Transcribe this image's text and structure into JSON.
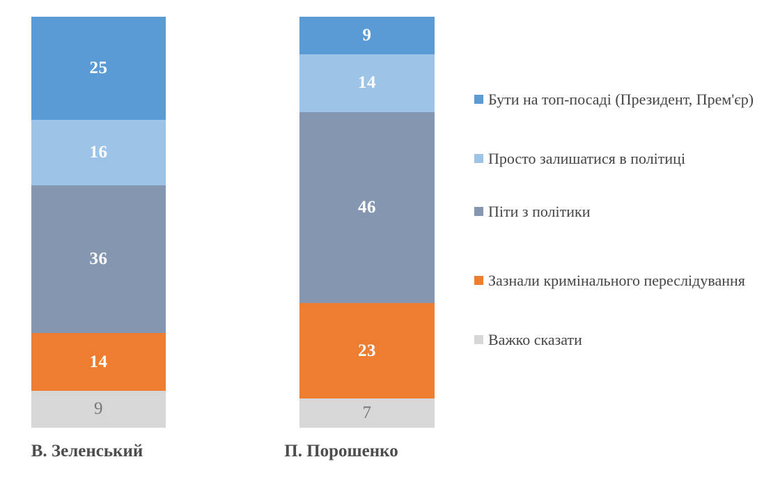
{
  "chart_data": {
    "type": "bar",
    "subtype": "stacked-column-100",
    "title": "",
    "xlabel": "",
    "ylabel": "",
    "grid": false,
    "axes_visible": false,
    "legend_position": "right",
    "categories": [
      "В. Зеленський",
      "П. Порошенко"
    ],
    "series": [
      {
        "name": "Бути на топ-посаді (Президент, Прем'єр)",
        "color": "#5b9bd5",
        "values": [
          25,
          9
        ],
        "label_color": "#ffffff",
        "label_bold": true
      },
      {
        "name": "Просто залишатися в політиці",
        "color": "#9dc3e6",
        "values": [
          16,
          14
        ],
        "label_color": "#ffffff",
        "label_bold": true
      },
      {
        "name": "Піти з політики",
        "color": "#8496b0",
        "values": [
          36,
          46
        ],
        "label_color": "#ffffff",
        "label_bold": true
      },
      {
        "name": "Зазнали кримінального переслідування",
        "color": "#ed7d31",
        "values": [
          14,
          23
        ],
        "label_color": "#ffffff",
        "label_bold": true
      },
      {
        "name": "Важко сказати",
        "color": "#d7d7d7",
        "values": [
          9,
          7
        ],
        "label_color": "#767676",
        "label_bold": false
      }
    ],
    "totals": [
      100,
      99
    ],
    "text_color": "#444444"
  }
}
